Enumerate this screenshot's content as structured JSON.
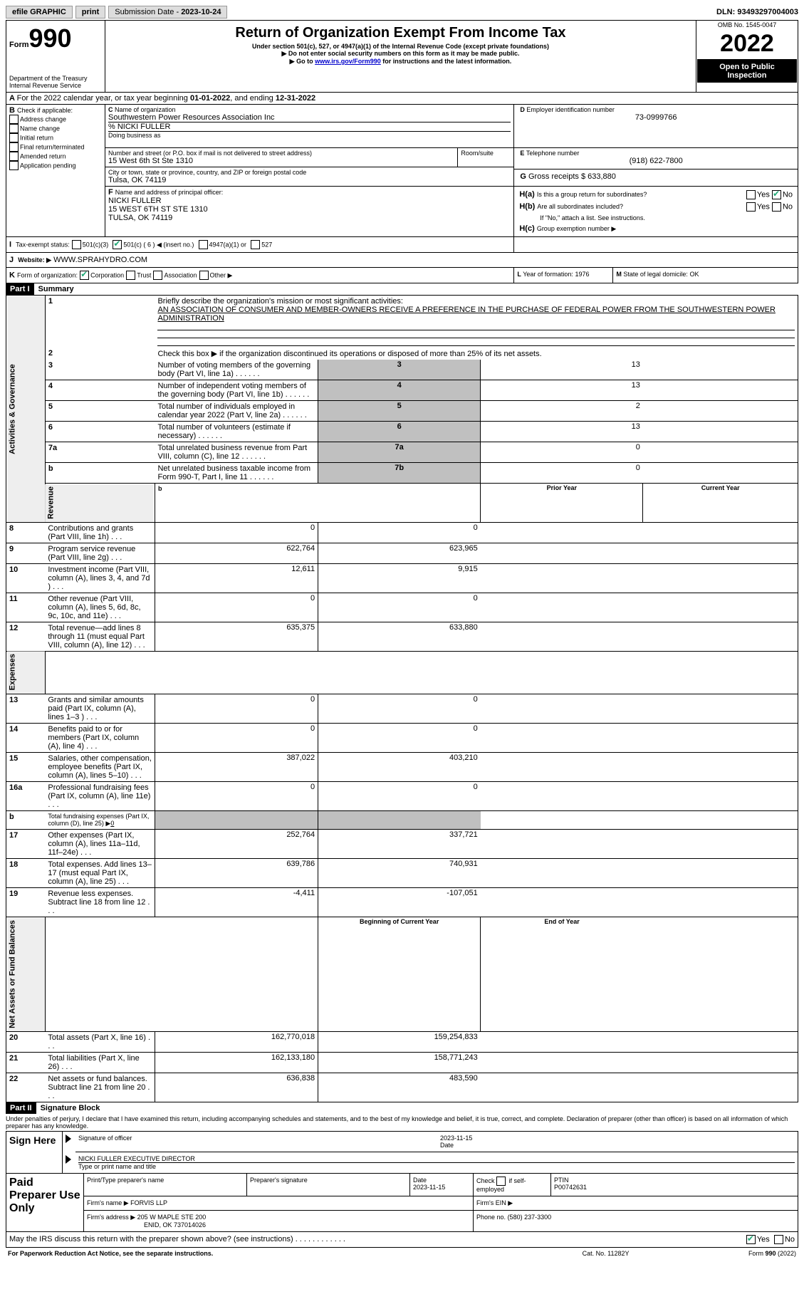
{
  "topbar": {
    "efile": "efile GRAPHIC",
    "print": "print",
    "sub_label": "Submission Date - ",
    "sub_date": "2023-10-24",
    "dln_label": "DLN: ",
    "dln": "93493297004003"
  },
  "header": {
    "form_word": "Form",
    "form_num": "990",
    "dept": "Department of the Treasury",
    "irs": "Internal Revenue Service",
    "title": "Return of Organization Exempt From Income Tax",
    "sub1": "Under section 501(c), 527, or 4947(a)(1) of the Internal Revenue Code (except private foundations)",
    "sub2": "▶ Do not enter social security numbers on this form as it may be made public.",
    "sub3_pre": "▶ Go to ",
    "sub3_link": "www.irs.gov/Form990",
    "sub3_post": " for instructions and the latest information.",
    "omb": "OMB No. 1545-0047",
    "year": "2022",
    "open": "Open to Public Inspection"
  },
  "A": {
    "text": "For the 2022 calendar year, or tax year beginning ",
    "begin": "01-01-2022",
    "mid": ", and ending ",
    "end": "12-31-2022"
  },
  "B": {
    "label": "Check if applicable:",
    "items": [
      "Address change",
      "Name change",
      "Initial return",
      "Final return/terminated",
      "Amended return",
      "Application pending"
    ]
  },
  "C": {
    "label": "Name of organization",
    "name": "Southwestern Power Resources Association Inc",
    "care": "% NICKI FULLER",
    "dba_label": "Doing business as",
    "dba": "",
    "addr_label": "Number and street (or P.O. box if mail is not delivered to street address)",
    "room_label": "Room/suite",
    "addr": "15 West 6th St Ste 1310",
    "city_label": "City or town, state or province, country, and ZIP or foreign postal code",
    "city": "Tulsa, OK  74119"
  },
  "D": {
    "label": "Employer identification number",
    "val": "73-0999766"
  },
  "E": {
    "label": "Telephone number",
    "val": "(918) 622-7800"
  },
  "G": {
    "label": "Gross receipts $",
    "val": "633,880"
  },
  "F": {
    "label": "Name and address of principal officer:",
    "name": "NICKI FULLER",
    "addr": "15 WEST 6TH ST STE 1310",
    "city": "TULSA, OK  74119"
  },
  "H": {
    "a": "Is this a group return for subordinates?",
    "b": "Are all subordinates included?",
    "bnote": "If \"No,\" attach a list. See instructions.",
    "c": "Group exemption number ▶",
    "yes": "Yes",
    "no": "No"
  },
  "I": {
    "label": "Tax-exempt status:",
    "o1": "501(c)(3)",
    "o2pre": "501(c) (",
    "o2num": "6",
    "o2post": ") ◀ (insert no.)",
    "o3": "4947(a)(1) or",
    "o4": "527"
  },
  "J": {
    "label": "Website: ▶",
    "val": "WWW.SPRAHYDRO.COM"
  },
  "K": {
    "label": "Form of organization:",
    "o1": "Corporation",
    "o2": "Trust",
    "o3": "Association",
    "o4": "Other ▶"
  },
  "L": {
    "label": "Year of formation:",
    "val": "1976"
  },
  "M": {
    "label": "State of legal domicile:",
    "val": "OK"
  },
  "partI": {
    "label": "Part I",
    "title": "Summary"
  },
  "summary": {
    "q1": "Briefly describe the organization's mission or most significant activities:",
    "mission": "AN ASSOCIATION OF CONSUMER AND MEMBER-OWNERS RECEIVE A PREFERENCE IN THE PURCHASE OF FEDERAL POWER FROM THE SOUTHWESTERN POWER ADMINISTRATION",
    "q2": "Check this box ▶         if the organization discontinued its operations or disposed of more than 25% of its net assets.",
    "rows": [
      {
        "n": "3",
        "t": "Number of voting members of the governing body (Part VI, line 1a)",
        "box": "3",
        "v": "13"
      },
      {
        "n": "4",
        "t": "Number of independent voting members of the governing body (Part VI, line 1b)",
        "box": "4",
        "v": "13"
      },
      {
        "n": "5",
        "t": "Total number of individuals employed in calendar year 2022 (Part V, line 2a)",
        "box": "5",
        "v": "2"
      },
      {
        "n": "6",
        "t": "Total number of volunteers (estimate if necessary)",
        "box": "6",
        "v": "13"
      },
      {
        "n": "7a",
        "t": "Total unrelated business revenue from Part VIII, column (C), line 12",
        "box": "7a",
        "v": "0"
      },
      {
        "n": "b",
        "t": "Net unrelated business taxable income from Form 990-T, Part I, line 11",
        "box": "7b",
        "v": "0"
      }
    ],
    "prior": "Prior Year",
    "current": "Current Year",
    "rev": [
      {
        "n": "8",
        "t": "Contributions and grants (Part VIII, line 1h)",
        "p": "0",
        "c": "0"
      },
      {
        "n": "9",
        "t": "Program service revenue (Part VIII, line 2g)",
        "p": "622,764",
        "c": "623,965"
      },
      {
        "n": "10",
        "t": "Investment income (Part VIII, column (A), lines 3, 4, and 7d )",
        "p": "12,611",
        "c": "9,915"
      },
      {
        "n": "11",
        "t": "Other revenue (Part VIII, column (A), lines 5, 6d, 8c, 9c, 10c, and 11e)",
        "p": "0",
        "c": "0"
      },
      {
        "n": "12",
        "t": "Total revenue—add lines 8 through 11 (must equal Part VIII, column (A), line 12)",
        "p": "635,375",
        "c": "633,880"
      }
    ],
    "exp": [
      {
        "n": "13",
        "t": "Grants and similar amounts paid (Part IX, column (A), lines 1–3 )",
        "p": "0",
        "c": "0"
      },
      {
        "n": "14",
        "t": "Benefits paid to or for members (Part IX, column (A), line 4)",
        "p": "0",
        "c": "0"
      },
      {
        "n": "15",
        "t": "Salaries, other compensation, employee benefits (Part IX, column (A), lines 5–10)",
        "p": "387,022",
        "c": "403,210"
      },
      {
        "n": "16a",
        "t": "Professional fundraising fees (Part IX, column (A), line 11e)",
        "p": "0",
        "c": "0"
      },
      {
        "n": "b",
        "t": "Total fundraising expenses (Part IX, column (D), line 25) ▶",
        "p": "grey",
        "c": "grey",
        "extra": "0"
      },
      {
        "n": "17",
        "t": "Other expenses (Part IX, column (A), lines 11a–11d, 11f–24e)",
        "p": "252,764",
        "c": "337,721"
      },
      {
        "n": "18",
        "t": "Total expenses. Add lines 13–17 (must equal Part IX, column (A), line 25)",
        "p": "639,786",
        "c": "740,931"
      },
      {
        "n": "19",
        "t": "Revenue less expenses. Subtract line 18 from line 12",
        "p": "-4,411",
        "c": "-107,051"
      }
    ],
    "boy": "Beginning of Current Year",
    "eoy": "End of Year",
    "net": [
      {
        "n": "20",
        "t": "Total assets (Part X, line 16)",
        "p": "162,770,018",
        "c": "159,254,833"
      },
      {
        "n": "21",
        "t": "Total liabilities (Part X, line 26)",
        "p": "162,133,180",
        "c": "158,771,243"
      },
      {
        "n": "22",
        "t": "Net assets or fund balances. Subtract line 21 from line 20",
        "p": "636,838",
        "c": "483,590"
      }
    ],
    "vtabs": {
      "ag": "Activities & Governance",
      "rev": "Revenue",
      "exp": "Expenses",
      "net": "Net Assets or Fund Balances"
    }
  },
  "partII": {
    "label": "Part II",
    "title": "Signature Block",
    "decl": "Under penalties of perjury, I declare that I have examined this return, including accompanying schedules and statements, and to the best of my knowledge and belief, it is true, correct, and complete. Declaration of preparer (other than officer) is based on all information of which preparer has any knowledge."
  },
  "sign": {
    "here": "Sign Here",
    "sig": "Signature of officer",
    "date": "Date",
    "sigdate": "2023-11-15",
    "name": "NICKI FULLER EXECUTIVE DIRECTOR",
    "name_label": "Type or print name and title"
  },
  "paid": {
    "title": "Paid Preparer Use Only",
    "c1": "Print/Type preparer's name",
    "c2": "Preparer's signature",
    "c3": "Date",
    "c3v": "2023-11-15",
    "c4": "Check         if self-employed",
    "c5": "PTIN",
    "ptin": "P00742631",
    "firm": "Firm's name   ▶",
    "firmv": "FORVIS LLP",
    "ein": "Firm's EIN ▶",
    "addr": "Firm's address ▶",
    "addrv": "205 W MAPLE STE 200",
    "city": "ENID, OK  737014026",
    "phone": "Phone no.",
    "phonev": "(580) 237-3300"
  },
  "bottom": {
    "q": "May the IRS discuss this return with the preparer shown above? (see instructions)",
    "yes": "Yes",
    "no": "No",
    "pra": "For Paperwork Reduction Act Notice, see the separate instructions.",
    "cat": "Cat. No. 11282Y",
    "form": "Form 990 (2022)"
  },
  "colors": {
    "link": "#0000cc",
    "black": "#000000",
    "grey": "#c0c0c0"
  }
}
